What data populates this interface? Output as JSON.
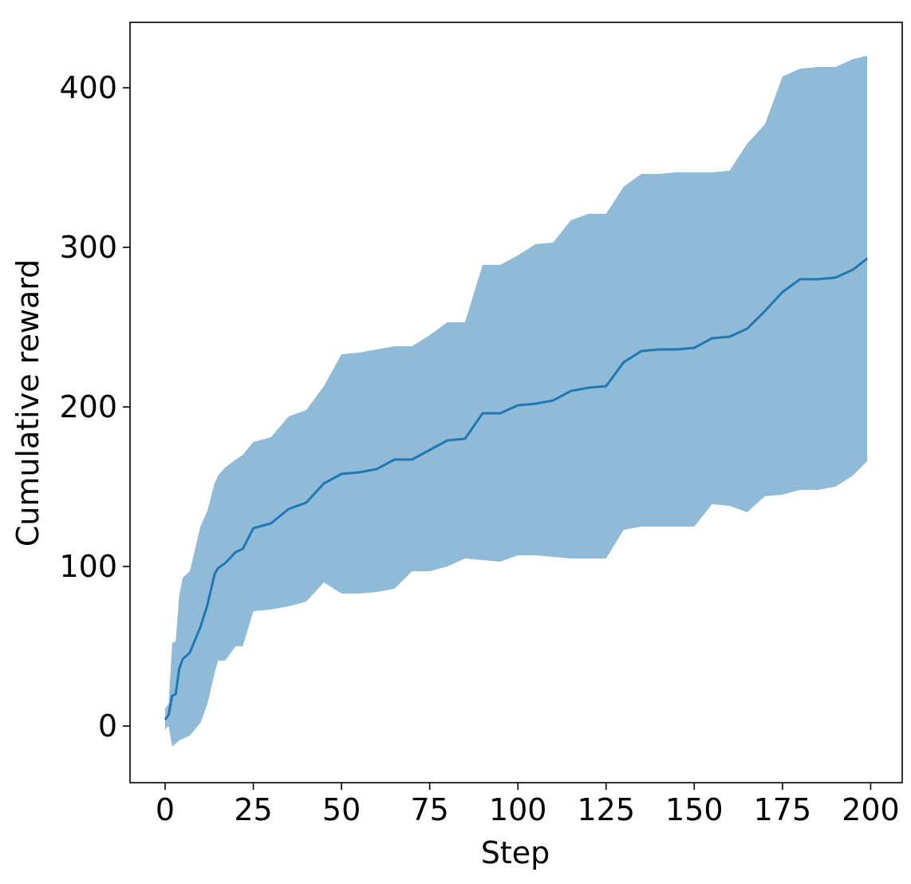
{
  "chart_data": {
    "type": "line",
    "x_label": "Step",
    "y_label": "Cumulative reward",
    "x": [
      0,
      1,
      2,
      3,
      4,
      5,
      7,
      10,
      12,
      14,
      15,
      17,
      20,
      22,
      25,
      30,
      35,
      40,
      45,
      50,
      55,
      60,
      65,
      70,
      75,
      80,
      85,
      90,
      95,
      100,
      105,
      110,
      115,
      120,
      125,
      130,
      135,
      140,
      145,
      150,
      155,
      160,
      165,
      170,
      175,
      180,
      185,
      190,
      195,
      199
    ],
    "series": [
      {
        "color": "#1f77b4",
        "values": [
          4,
          7,
          19,
          20,
          36,
          42,
          46,
          62,
          76,
          95,
          99,
          102,
          109,
          111,
          124,
          127,
          136,
          140,
          152,
          158,
          159,
          161,
          167,
          167,
          173,
          179,
          180,
          196,
          196,
          201,
          202,
          204,
          210,
          212,
          213,
          228,
          235,
          236,
          236,
          237,
          243,
          244,
          249,
          260,
          272,
          280,
          280,
          281,
          286,
          293
        ]
      }
    ],
    "band": {
      "color": "#1f77b4",
      "opacity": 0.5,
      "lower": [
        -2,
        0,
        -13,
        -11,
        -9,
        -8,
        -6,
        2,
        14,
        33,
        41,
        41,
        50,
        50,
        72,
        73,
        75,
        78,
        90,
        83,
        83,
        84,
        86,
        97,
        97,
        100,
        105,
        104,
        103,
        107,
        107,
        106,
        105,
        105,
        105,
        123,
        125,
        125,
        125,
        125,
        139,
        138,
        134,
        144,
        145,
        148,
        148,
        150,
        157,
        166
      ],
      "upper": [
        11,
        14,
        52,
        53,
        82,
        93,
        97,
        125,
        135,
        152,
        157,
        162,
        167,
        170,
        178,
        181,
        194,
        198,
        213,
        233,
        234,
        236,
        238,
        238,
        245,
        253,
        253,
        289,
        289,
        295,
        302,
        303,
        317,
        321,
        321,
        338,
        346,
        346,
        347,
        347,
        347,
        348,
        365,
        377,
        407,
        412,
        413,
        413,
        418,
        420
      ]
    },
    "xlim": [
      -9.95,
      208.95
    ],
    "xticks": [
      0,
      25,
      50,
      75,
      100,
      125,
      150,
      175,
      200
    ],
    "ylim": [
      -35.5,
      441
    ],
    "yticks": [
      0,
      100,
      200,
      300,
      400
    ]
  }
}
